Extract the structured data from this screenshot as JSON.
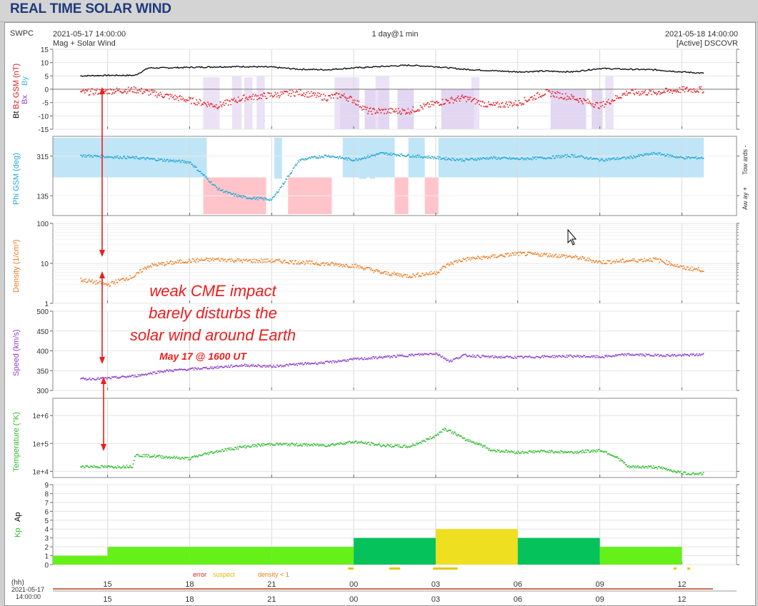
{
  "page": {
    "title": "REAL TIME SOLAR WIND"
  },
  "header": {
    "agency": "SWPC",
    "start_time": "2021-05-17 14:00:00",
    "source_left": "Mag + Solar Wind",
    "span": "1 day@1 min",
    "end_time": "2021-05-18 14:00:00",
    "source_right": "[Active] DSCOVR"
  },
  "axis_labels": {
    "mag_bt": "Bt",
    "mag_bz": "Bz GSM (nT)",
    "mag_by": "By",
    "mag_bx": "Bx",
    "phi": "Phi GSM (deg)",
    "phi_towards": "Tow ards -",
    "phi_away": "Aw ay +",
    "density": "Density (1/cm³)",
    "speed": "Speed (km/s)",
    "temperature": "Temperature (°K)",
    "kp": "Kp",
    "ap": "Ap"
  },
  "annotation": {
    "line1": "weak CME impact",
    "line2": "barely disturbs the",
    "line3": "solar wind around Earth",
    "subtitle": "May 17 @  1600 UT"
  },
  "legend": {
    "error": "error",
    "suspect": "suspect",
    "density": "density < 1"
  },
  "footer": {
    "hh": "(hh)",
    "date": "2021-05-17",
    "time": "14:00:00"
  },
  "colors": {
    "bt": "#111111",
    "bz": "#e8181c",
    "by": "#33bde0",
    "bx": "#8a3ec8",
    "phi": "#23a7d6",
    "density": "#ef7d22",
    "speed": "#8e3fcc",
    "temperature": "#2cbc2c",
    "kp_quiet": "#66f01a",
    "kp_unsettled": "#06c25a",
    "kp_active": "#eee021",
    "annotation": "#ef1c1c",
    "shade_towards": "#bfe5f6",
    "shade_away": "#ffc4c9",
    "bz_south_shade": "#e2d6f2"
  },
  "chart_data": [
    {
      "type": "line",
      "panel": "magnetic field",
      "x_unit": "hours from 2021-05-17 14:00 UT",
      "ylim": [
        -15,
        15
      ],
      "yticks": [
        15,
        10,
        5,
        0,
        -5,
        -10,
        -15
      ],
      "series": [
        {
          "name": "Bt",
          "x": [
            0,
            1,
            2,
            2.5,
            3,
            4,
            5,
            6,
            7,
            8,
            9,
            10,
            11,
            12,
            13,
            14,
            15,
            16,
            17,
            18,
            19,
            20,
            21,
            22,
            22.8
          ],
          "y": [
            5,
            5.2,
            5.2,
            8,
            8,
            8.2,
            8.4,
            8.5,
            8.3,
            7.5,
            7.3,
            8,
            8.5,
            9,
            8.5,
            7.5,
            7,
            6.5,
            6.8,
            6.5,
            7.8,
            7.5,
            7.3,
            6.5,
            6
          ]
        },
        {
          "name": "Bz GSM",
          "x": [
            0,
            1,
            2,
            2.5,
            3,
            4,
            5,
            6,
            7,
            8,
            9,
            9.5,
            10,
            10.5,
            11,
            12,
            13,
            14,
            15,
            16,
            17,
            18,
            19,
            20,
            21,
            22,
            22.8
          ],
          "y": [
            -1,
            -0.5,
            0,
            -1,
            -2,
            -4,
            -6,
            -3,
            -2,
            -1,
            -3,
            -2,
            -4,
            -8,
            -8,
            -8,
            -5,
            -3,
            -6,
            -5,
            -1,
            -3,
            -6,
            -1,
            -1,
            0,
            0
          ]
        }
      ]
    },
    {
      "type": "scatter",
      "panel": "phi",
      "yticks": [
        315,
        135
      ],
      "ylim": [
        45,
        405
      ],
      "x": [
        0,
        2,
        4,
        5,
        5.5,
        6,
        7,
        8,
        9,
        10,
        11,
        12,
        13,
        14,
        15,
        16,
        17,
        18,
        19,
        20,
        21,
        22,
        22.8
      ],
      "y": [
        320,
        310,
        290,
        170,
        145,
        130,
        120,
        300,
        320,
        300,
        330,
        320,
        310,
        300,
        310,
        305,
        310,
        320,
        300,
        310,
        330,
        310,
        310
      ]
    },
    {
      "type": "line",
      "panel": "density",
      "yscale": "log",
      "yticks": [
        1,
        10,
        100
      ],
      "ylim": [
        1,
        100
      ],
      "x": [
        0,
        1,
        2,
        2.5,
        3,
        4,
        5,
        6,
        7,
        8,
        9,
        10,
        11,
        12,
        13,
        13.5,
        14,
        15,
        16,
        17,
        18,
        19,
        20,
        21,
        22,
        22.8
      ],
      "y": [
        4,
        3,
        5,
        9,
        10,
        12,
        13,
        12,
        12,
        11,
        10,
        9,
        6,
        5,
        6,
        10,
        13,
        15,
        18,
        17,
        15,
        11,
        12,
        13,
        8,
        7
      ]
    },
    {
      "type": "line",
      "panel": "speed",
      "yticks": [
        300,
        350,
        400,
        450,
        500
      ],
      "ylim": [
        300,
        500
      ],
      "x": [
        0,
        1,
        2,
        3,
        4,
        5,
        6,
        7,
        8,
        9,
        10,
        11,
        12,
        13,
        13.5,
        14,
        15,
        16,
        17,
        18,
        19,
        20,
        21,
        22,
        22.8
      ],
      "y": [
        330,
        332,
        338,
        350,
        355,
        360,
        365,
        362,
        368,
        372,
        380,
        385,
        390,
        395,
        375,
        390,
        386,
        385,
        387,
        388,
        386,
        392,
        390,
        390,
        392
      ]
    },
    {
      "type": "line",
      "panel": "temperature",
      "yscale": "log",
      "yticks": [
        10000,
        100000,
        1000000
      ],
      "ytick_labels": [
        "1e+4",
        "1e+5",
        "1e+6"
      ],
      "x": [
        0,
        1,
        1.9,
        2,
        3,
        4,
        5,
        6,
        7,
        8,
        9,
        10,
        11,
        12,
        12.5,
        13,
        13.3,
        14,
        15,
        16,
        17,
        18,
        19,
        20,
        21,
        22,
        22.8
      ],
      "y": [
        16000,
        15000,
        16000,
        40000,
        35000,
        30000,
        55000,
        80000,
        100000,
        95000,
        90000,
        120000,
        90000,
        80000,
        120000,
        200000,
        350000,
        150000,
        60000,
        50000,
        55000,
        50000,
        60000,
        15000,
        15000,
        9000,
        8500
      ]
    },
    {
      "type": "bar",
      "panel": "Kp",
      "ylim": [
        0,
        9
      ],
      "yticks": [
        0,
        1,
        2,
        3,
        4,
        5,
        6,
        7,
        8,
        9
      ],
      "intervals": [
        "14-15",
        "15-18",
        "18-21",
        "21-00",
        "00-03",
        "03-06",
        "06-09",
        "09-12"
      ],
      "values": [
        1,
        2,
        2,
        2,
        3,
        4,
        3,
        2
      ]
    }
  ],
  "x_axis": {
    "tick_labels": [
      "15",
      "18",
      "21",
      "00",
      "03",
      "06",
      "09",
      "12"
    ],
    "tick_hours": [
      1,
      4,
      7,
      10,
      13,
      16,
      19,
      22
    ]
  }
}
